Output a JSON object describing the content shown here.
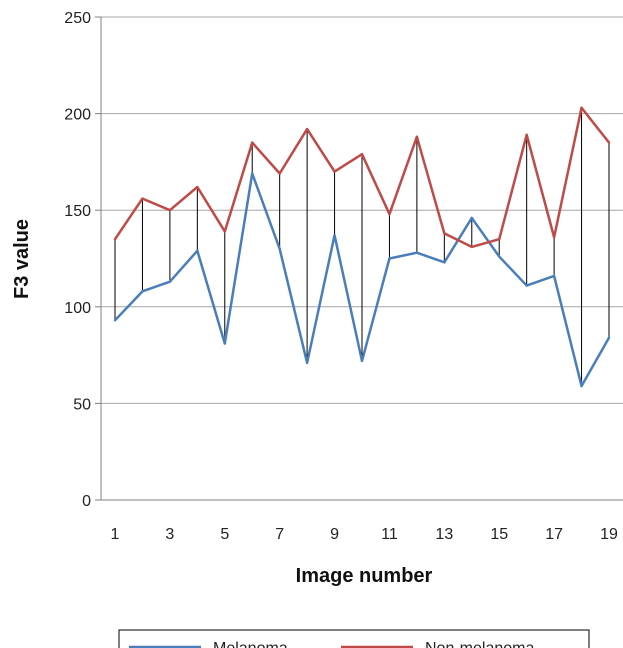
{
  "chart_data": {
    "type": "line",
    "xlabel": "Image number",
    "ylabel": "F3 value",
    "ylim": [
      0,
      250
    ],
    "yticks": [
      0,
      50,
      100,
      150,
      200,
      250
    ],
    "x": [
      1,
      2,
      3,
      4,
      5,
      6,
      7,
      8,
      9,
      10,
      11,
      12,
      13,
      14,
      15,
      16,
      17,
      18,
      19
    ],
    "xtick_labels": [
      "1",
      "3",
      "5",
      "7",
      "9",
      "11",
      "13",
      "15",
      "17",
      "19"
    ],
    "grid": "horizontal",
    "drop_lines": true,
    "legend": "bottom",
    "series": [
      {
        "name": "Melanoma",
        "color": "#4a7ebb",
        "values": [
          93,
          108,
          113,
          129,
          81,
          169,
          130,
          71,
          137,
          72,
          125,
          128,
          123,
          146,
          126,
          111,
          116,
          59,
          84
        ]
      },
      {
        "name": "Non-melanoma",
        "color": "#be4b48",
        "values": [
          135,
          156,
          150,
          162,
          139,
          185,
          169,
          192,
          170,
          179,
          148,
          188,
          138,
          131,
          135,
          189,
          136,
          203,
          185
        ]
      }
    ]
  }
}
